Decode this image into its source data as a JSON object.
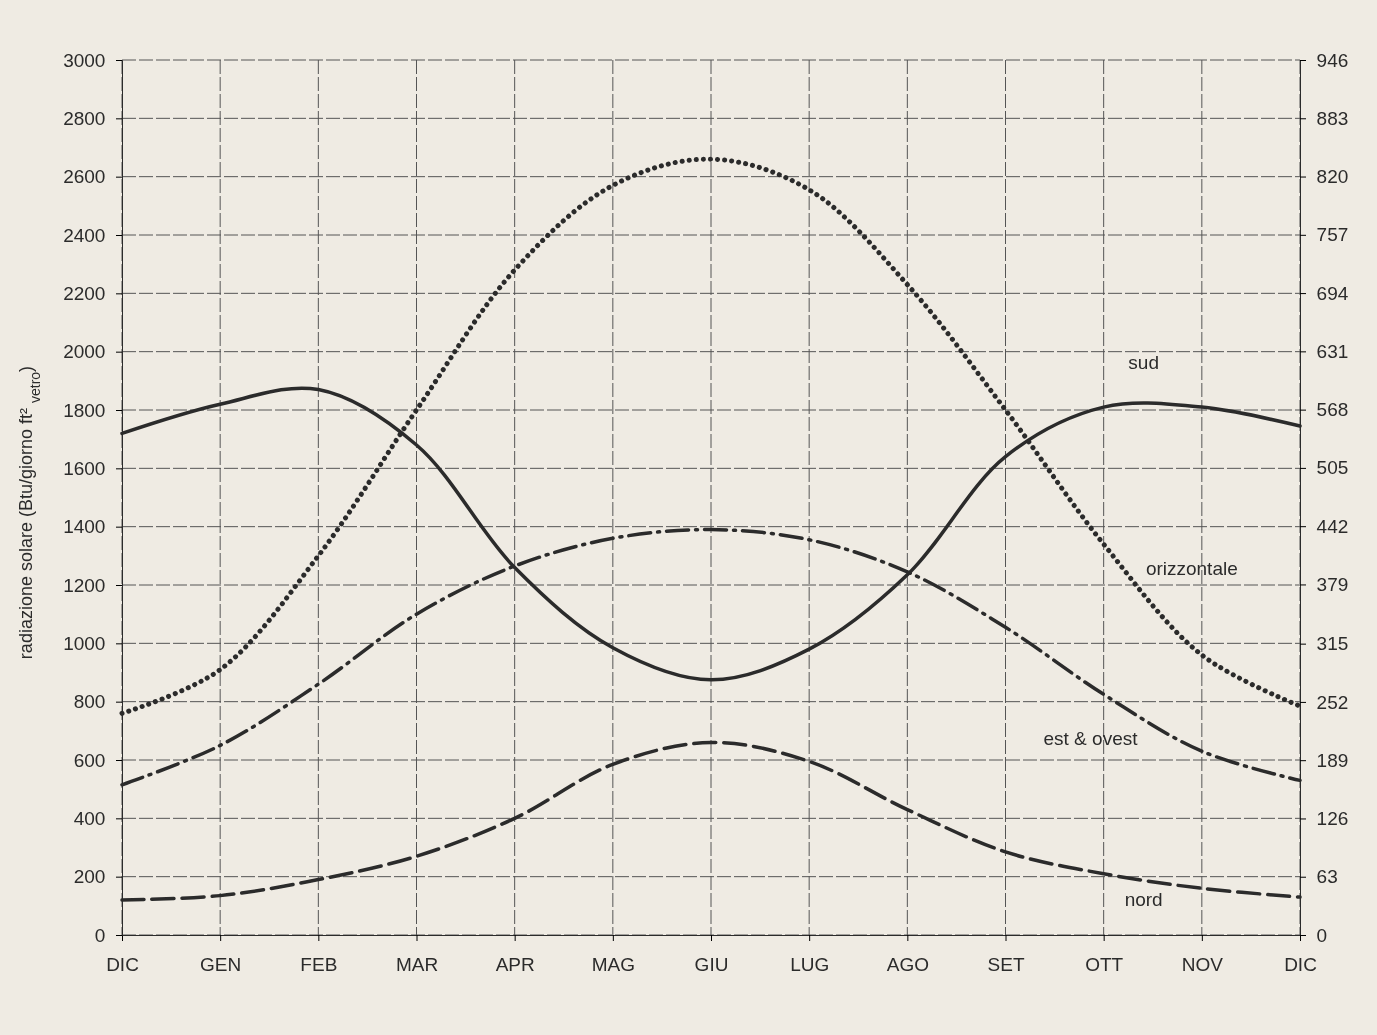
{
  "chart_data": {
    "type": "line",
    "ylabel": "radiazione solare (Btu/giorno ft² $_{vetro}$)",
    "categories": [
      "DIC",
      "GEN",
      "FEB",
      "MAR",
      "APR",
      "MAG",
      "GIU",
      "LUG",
      "AGO",
      "SET",
      "OTT",
      "NOV",
      "DIC"
    ],
    "ylim": [
      0,
      3000
    ],
    "yticks": [
      0,
      200,
      400,
      600,
      800,
      1000,
      1200,
      1400,
      1600,
      1800,
      2000,
      2200,
      2400,
      2600,
      2800,
      3000
    ],
    "y2lim": [
      0,
      946
    ],
    "y2ticks": [
      0,
      63,
      126,
      189,
      252,
      315,
      379,
      442,
      505,
      568,
      631,
      694,
      757,
      820,
      883,
      946
    ],
    "grid": true,
    "series": [
      {
        "name": "sud",
        "color": "#2b2b2b",
        "line_style": "solid",
        "values": [
          1720,
          1820,
          1870,
          1680,
          1260,
          985,
          875,
          980,
          1235,
          1640,
          1810,
          1810,
          1745
        ]
      },
      {
        "name": "orizzontale",
        "color": "#2b2b2b",
        "line_style": "dotted",
        "values": [
          760,
          910,
          1300,
          1800,
          2280,
          2570,
          2660,
          2555,
          2230,
          1800,
          1340,
          960,
          785
        ]
      },
      {
        "name": "est & ovest",
        "color": "#2b2b2b",
        "line_style": "dashdot",
        "values": [
          515,
          650,
          860,
          1100,
          1265,
          1360,
          1390,
          1355,
          1245,
          1055,
          825,
          630,
          530
        ]
      },
      {
        "name": "nord",
        "color": "#2b2b2b",
        "line_style": "dashed",
        "values": [
          120,
          135,
          190,
          270,
          400,
          585,
          660,
          595,
          430,
          285,
          210,
          160,
          130
        ]
      }
    ]
  }
}
